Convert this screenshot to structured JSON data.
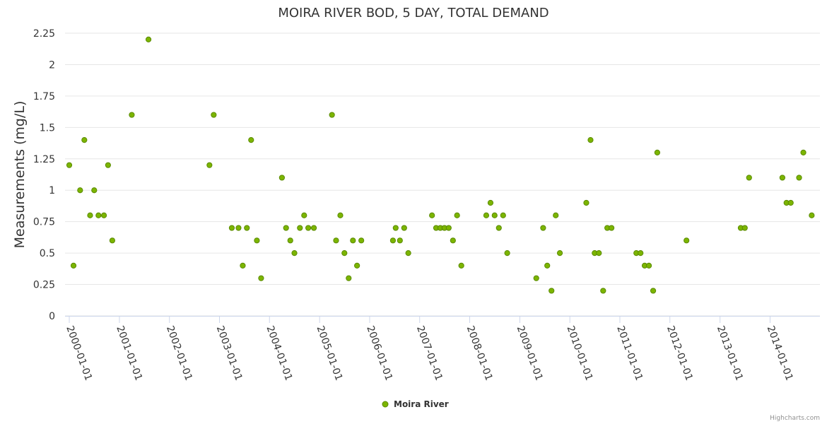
{
  "chart_data": {
    "type": "scatter",
    "title": "MOIRA RIVER BOD, 5 DAY, TOTAL DEMAND",
    "ylabel": "Measurements (mg/L)",
    "xlabel": "",
    "ylim": [
      0,
      2.25
    ],
    "yticks": [
      "0",
      "0.25",
      "0.5",
      "0.75",
      "1",
      "1.25",
      "1.5",
      "1.75",
      "2",
      "2.25"
    ],
    "xticks": [
      "2000-01-01",
      "2001-01-01",
      "2002-01-01",
      "2003-01-01",
      "2004-01-01",
      "2005-01-01",
      "2006-01-01",
      "2007-01-01",
      "2008-01-01",
      "2009-01-01",
      "2010-01-01",
      "2011-01-01",
      "2012-01-01",
      "2013-01-01",
      "2014-01-01"
    ],
    "xlim": [
      "1999-12-01",
      "2014-12-31"
    ],
    "grid": true,
    "legend_position": "bottom-center",
    "credits": "Highcharts.com",
    "series": [
      {
        "name": "Moira River",
        "color": "#7cb500",
        "stroke": "#5a8a00",
        "points": [
          [
            "2000-01-01",
            1.2
          ],
          [
            "2000-02-01",
            0.4
          ],
          [
            "2000-03-20",
            1.0
          ],
          [
            "2000-04-20",
            1.4
          ],
          [
            "2000-06-01",
            0.8
          ],
          [
            "2000-07-01",
            1.0
          ],
          [
            "2000-08-01",
            0.8
          ],
          [
            "2000-09-10",
            0.8
          ],
          [
            "2000-10-10",
            1.2
          ],
          [
            "2000-11-10",
            0.6
          ],
          [
            "2001-04-01",
            1.6
          ],
          [
            "2001-08-01",
            2.2
          ],
          [
            "2002-10-20",
            1.2
          ],
          [
            "2002-11-20",
            1.6
          ],
          [
            "2003-04-01",
            0.7
          ],
          [
            "2003-05-20",
            0.7
          ],
          [
            "2003-06-20",
            0.4
          ],
          [
            "2003-07-20",
            0.7
          ],
          [
            "2003-08-20",
            1.4
          ],
          [
            "2003-10-01",
            0.6
          ],
          [
            "2003-11-01",
            0.3
          ],
          [
            "2004-04-01",
            1.1
          ],
          [
            "2004-05-01",
            0.7
          ],
          [
            "2004-06-01",
            0.6
          ],
          [
            "2004-07-01",
            0.5
          ],
          [
            "2004-08-10",
            0.7
          ],
          [
            "2004-09-10",
            0.8
          ],
          [
            "2004-10-10",
            0.7
          ],
          [
            "2004-11-20",
            0.7
          ],
          [
            "2005-04-01",
            1.6
          ],
          [
            "2005-05-01",
            0.6
          ],
          [
            "2005-06-01",
            0.8
          ],
          [
            "2005-07-01",
            0.5
          ],
          [
            "2005-08-01",
            0.3
          ],
          [
            "2005-09-01",
            0.6
          ],
          [
            "2005-10-01",
            0.4
          ],
          [
            "2005-11-01",
            0.6
          ],
          [
            "2006-06-20",
            0.6
          ],
          [
            "2006-07-10",
            0.7
          ],
          [
            "2006-08-10",
            0.6
          ],
          [
            "2006-09-10",
            0.7
          ],
          [
            "2006-10-10",
            0.5
          ],
          [
            "2007-04-01",
            0.8
          ],
          [
            "2007-05-01",
            0.7
          ],
          [
            "2007-06-01",
            0.7
          ],
          [
            "2007-07-01",
            0.7
          ],
          [
            "2007-08-01",
            0.7
          ],
          [
            "2007-09-01",
            0.6
          ],
          [
            "2007-10-01",
            0.8
          ],
          [
            "2007-11-01",
            0.4
          ],
          [
            "2008-05-01",
            0.8
          ],
          [
            "2008-06-01",
            0.9
          ],
          [
            "2008-07-01",
            0.8
          ],
          [
            "2008-08-01",
            0.7
          ],
          [
            "2008-09-01",
            0.8
          ],
          [
            "2008-10-01",
            0.5
          ],
          [
            "2009-05-01",
            0.3
          ],
          [
            "2009-06-20",
            0.7
          ],
          [
            "2009-07-20",
            0.4
          ],
          [
            "2009-08-20",
            0.2
          ],
          [
            "2009-09-20",
            0.8
          ],
          [
            "2009-10-20",
            0.5
          ],
          [
            "2010-05-01",
            0.9
          ],
          [
            "2010-06-01",
            1.4
          ],
          [
            "2010-07-01",
            0.5
          ],
          [
            "2010-08-01",
            0.5
          ],
          [
            "2010-09-01",
            0.2
          ],
          [
            "2010-10-01",
            0.7
          ],
          [
            "2010-11-01",
            0.7
          ],
          [
            "2011-05-01",
            0.5
          ],
          [
            "2011-06-01",
            0.5
          ],
          [
            "2011-07-01",
            0.4
          ],
          [
            "2011-08-01",
            0.4
          ],
          [
            "2011-09-01",
            0.2
          ],
          [
            "2011-10-01",
            1.3
          ],
          [
            "2012-05-01",
            0.6
          ],
          [
            "2013-06-01",
            0.7
          ],
          [
            "2013-07-01",
            0.7
          ],
          [
            "2013-08-01",
            1.1
          ],
          [
            "2014-04-01",
            1.1
          ],
          [
            "2014-05-01",
            0.9
          ],
          [
            "2014-06-01",
            0.9
          ],
          [
            "2014-08-01",
            1.1
          ],
          [
            "2014-09-01",
            1.3
          ],
          [
            "2014-11-01",
            0.8
          ]
        ]
      }
    ]
  }
}
